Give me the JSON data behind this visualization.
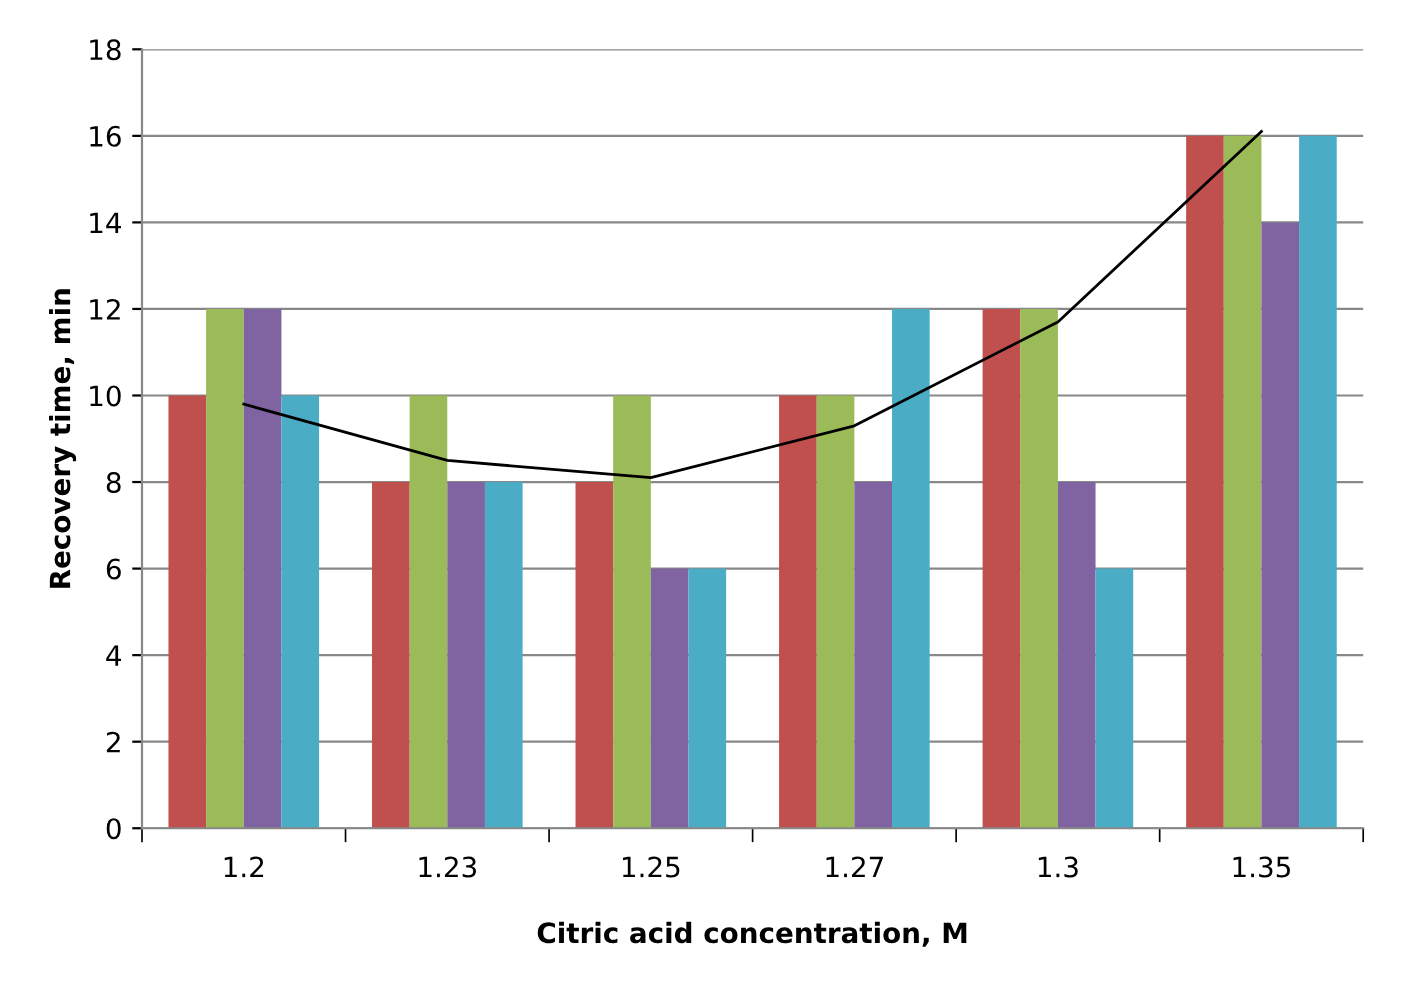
{
  "chart_data": {
    "type": "bar",
    "xlabel": "Citric acid concentration, M",
    "ylabel": "Recovery time, min",
    "categories": [
      "1.2",
      "1.23",
      "1.25",
      "1.27",
      "1.3",
      "1.35"
    ],
    "series": [
      {
        "color": "#c0504d",
        "values": [
          10,
          8,
          8,
          10,
          12,
          16
        ]
      },
      {
        "color": "#9bbb59",
        "values": [
          12,
          10,
          10,
          10,
          12,
          16
        ]
      },
      {
        "color": "#8064a2",
        "values": [
          12,
          8,
          6,
          8,
          8,
          14
        ]
      },
      {
        "color": "#4bacc6",
        "values": [
          10,
          8,
          6,
          12,
          6,
          16
        ]
      },
      {
        "type": "line",
        "color": "#000000",
        "values": [
          9.8,
          8.5,
          8.1,
          9.3,
          11.7,
          16.1
        ]
      }
    ],
    "ylim": [
      0,
      18
    ],
    "yticks": [
      0,
      2,
      4,
      6,
      8,
      10,
      12,
      14,
      16,
      18
    ],
    "grid": "y",
    "legend": false
  }
}
